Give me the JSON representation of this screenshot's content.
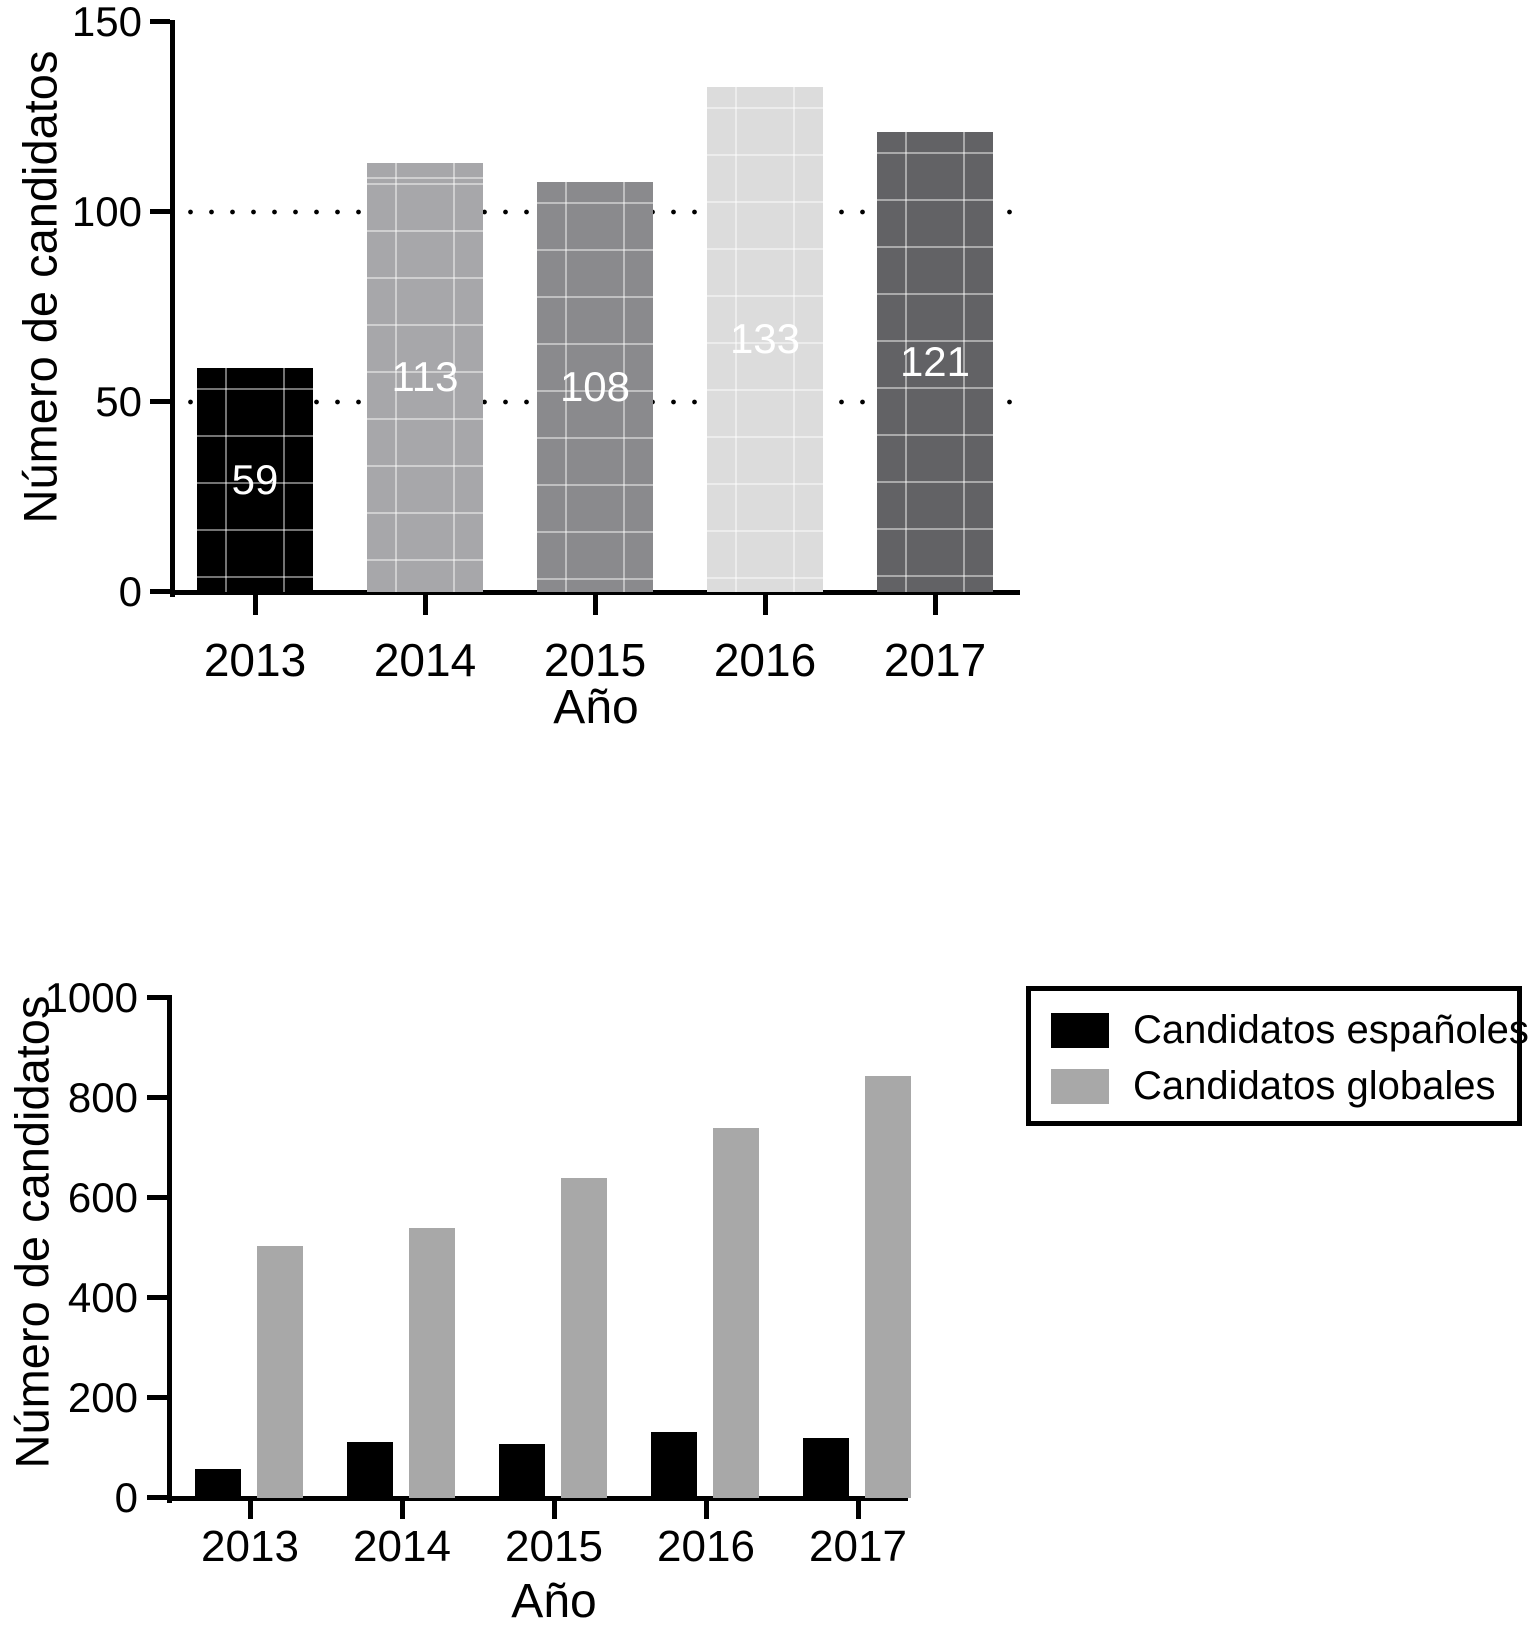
{
  "chart_data": [
    {
      "type": "bar",
      "title": "",
      "xlabel": "Año",
      "ylabel": "Número de candidatos",
      "categories": [
        "2013",
        "2014",
        "2015",
        "2016",
        "2017"
      ],
      "values": [
        59,
        113,
        108,
        133,
        121
      ],
      "bar_colors": [
        "#000000",
        "#a7a7aa",
        "#8a8a8d",
        "#dcdcdc",
        "#626265"
      ],
      "value_label_color": "#ffffff",
      "show_value_labels": true,
      "ylim": [
        0,
        150
      ],
      "yticks": [
        0,
        50,
        100,
        150
      ],
      "gridlines": {
        "values": [
          50,
          100
        ],
        "style": "dotted",
        "color": "#000000"
      }
    },
    {
      "type": "bar",
      "grouped": true,
      "title": "",
      "xlabel": "Año",
      "ylabel": "Número de candidatos",
      "categories": [
        "2013",
        "2014",
        "2015",
        "2016",
        "2017"
      ],
      "series": [
        {
          "name": "Candidatos españoles",
          "color": "#000000",
          "values": [
            59,
            113,
            108,
            133,
            121
          ]
        },
        {
          "name": "Candidatos globales",
          "color": "#a8a8a8",
          "values": [
            505,
            540,
            640,
            740,
            845
          ]
        }
      ],
      "ylim": [
        0,
        1000
      ],
      "yticks": [
        0,
        200,
        400,
        600,
        800,
        1000
      ],
      "legend_position": "top-right",
      "grid": false
    }
  ]
}
